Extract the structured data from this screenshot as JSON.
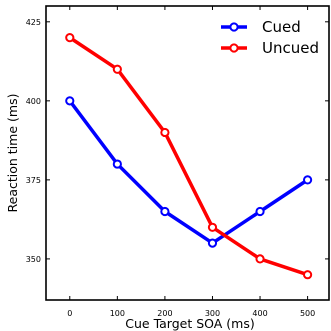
{
  "chart_data": {
    "type": "line",
    "title": "",
    "xlabel": "Cue Target SOA (ms)",
    "ylabel": "Reaction time (ms)",
    "x": [
      0,
      100,
      200,
      300,
      400,
      500
    ],
    "xticks": [
      "0",
      "100",
      "200",
      "300",
      "400",
      "500"
    ],
    "yticks": [
      "350",
      "375",
      "400",
      "425"
    ],
    "xlim": [
      -50,
      545
    ],
    "ylim": [
      337,
      430
    ],
    "grid": false,
    "legend_position": "top-right",
    "series": [
      {
        "name": "Cued",
        "color": "#0000ff",
        "values": [
          400,
          380,
          365,
          355,
          365,
          375
        ]
      },
      {
        "name": "Uncued",
        "color": "#ff0000",
        "values": [
          420,
          410,
          390,
          360,
          350,
          345
        ]
      }
    ]
  }
}
